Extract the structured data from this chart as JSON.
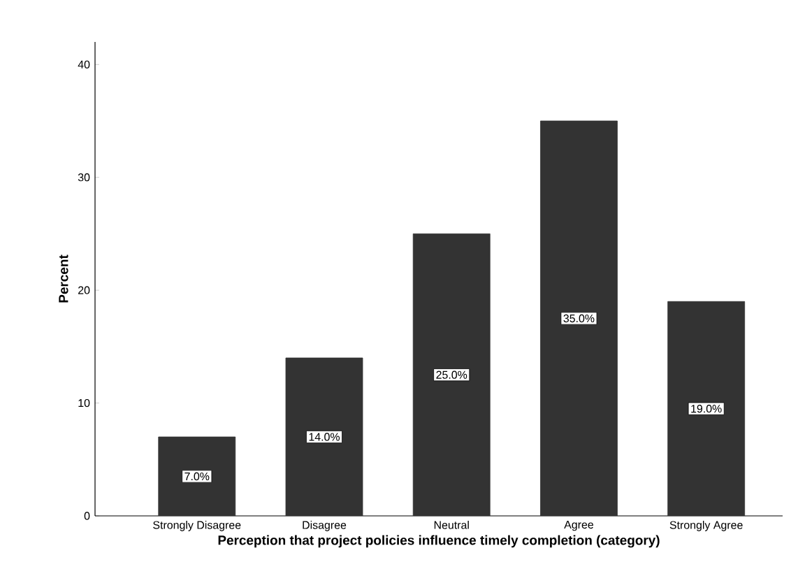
{
  "chart_data": {
    "type": "bar",
    "xlabel": "Perception that project policies influence timely completion (category)",
    "ylabel": "Percent",
    "categories": [
      "Strongly Disagree",
      "Disagree",
      "Neutral",
      "Agree",
      "Strongly Agree"
    ],
    "values": [
      7,
      14,
      25,
      35,
      19
    ],
    "value_labels": [
      "7.0%",
      "14.0%",
      "25.0%",
      "35.0%",
      "19.0%"
    ],
    "color": "#333333",
    "ylim": [
      0,
      42
    ],
    "yticks": [
      0,
      10,
      20,
      30,
      40
    ]
  }
}
